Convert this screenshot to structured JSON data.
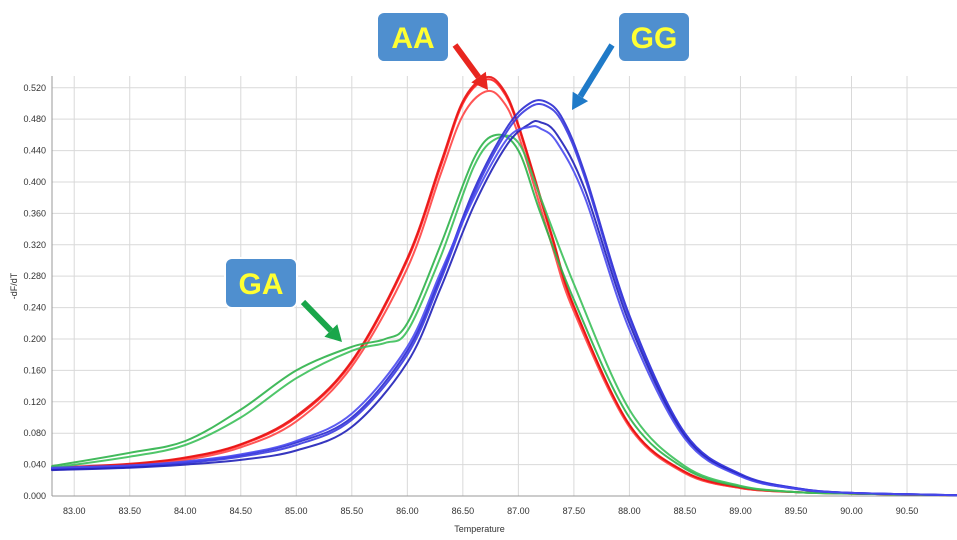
{
  "chart_data": {
    "type": "line",
    "title": "",
    "xlabel": "Temperature",
    "ylabel": "-dF/dT",
    "xlim": [
      82.8,
      90.95
    ],
    "ylim": [
      0,
      0.535
    ],
    "x_ticks": [
      "83.00",
      "83.50",
      "84.00",
      "84.50",
      "85.00",
      "85.50",
      "86.00",
      "86.50",
      "87.00",
      "87.50",
      "88.00",
      "88.50",
      "89.00",
      "89.50",
      "90.00",
      "90.50"
    ],
    "y_ticks": [
      "0.000",
      "0.040",
      "0.080",
      "0.120",
      "0.160",
      "0.200",
      "0.240",
      "0.280",
      "0.320",
      "0.360",
      "0.400",
      "0.440",
      "0.480",
      "0.520"
    ],
    "grid": true,
    "callouts": [
      {
        "label": "AA",
        "color": "#e8261f"
      },
      {
        "label": "GG",
        "color": "#1f7ac8"
      },
      {
        "label": "GA",
        "color": "#1aa64a"
      }
    ],
    "callout_box_color": "#4f8fcf",
    "series": [
      {
        "group": "AA",
        "color": "#ff2020",
        "x": [
          82.8,
          83.5,
          84.0,
          84.5,
          85.0,
          85.5,
          86.0,
          86.3,
          86.5,
          86.7,
          86.85,
          87.0,
          87.3,
          87.5,
          88.0,
          88.5,
          89.0,
          89.5,
          90.0,
          90.95
        ],
        "y": [
          0.035,
          0.04,
          0.048,
          0.065,
          0.1,
          0.17,
          0.3,
          0.42,
          0.5,
          0.53,
          0.518,
          0.47,
          0.33,
          0.24,
          0.09,
          0.03,
          0.01,
          0.005,
          0.003,
          0.001
        ]
      },
      {
        "group": "AA",
        "color": "#ff4444",
        "x": [
          82.8,
          83.5,
          84.0,
          84.5,
          85.0,
          85.5,
          86.0,
          86.3,
          86.5,
          86.7,
          86.85,
          87.0,
          87.3,
          87.5,
          88.0,
          88.5,
          89.0,
          89.5,
          90.0,
          90.95
        ],
        "y": [
          0.034,
          0.039,
          0.046,
          0.062,
          0.095,
          0.165,
          0.29,
          0.41,
          0.485,
          0.515,
          0.505,
          0.46,
          0.32,
          0.235,
          0.088,
          0.029,
          0.01,
          0.005,
          0.003,
          0.001
        ]
      },
      {
        "group": "AA",
        "color": "#e81010",
        "x": [
          82.8,
          83.5,
          84.0,
          84.5,
          85.0,
          85.5,
          86.0,
          86.3,
          86.5,
          86.7,
          86.85,
          87.0,
          87.3,
          87.5,
          88.0,
          88.5,
          89.0,
          89.5,
          90.0,
          90.95
        ],
        "y": [
          0.036,
          0.041,
          0.049,
          0.066,
          0.102,
          0.172,
          0.303,
          0.424,
          0.503,
          0.533,
          0.521,
          0.473,
          0.333,
          0.242,
          0.091,
          0.031,
          0.011,
          0.005,
          0.003,
          0.001
        ]
      },
      {
        "group": "GA",
        "color": "#2db34a",
        "x": [
          82.8,
          83.5,
          84.0,
          84.5,
          85.0,
          85.5,
          85.8,
          86.0,
          86.3,
          86.6,
          86.8,
          87.0,
          87.2,
          87.5,
          88.0,
          88.5,
          89.0,
          89.5,
          90.0,
          90.95
        ],
        "y": [
          0.038,
          0.055,
          0.07,
          0.11,
          0.16,
          0.19,
          0.2,
          0.22,
          0.32,
          0.43,
          0.46,
          0.44,
          0.36,
          0.25,
          0.1,
          0.035,
          0.012,
          0.005,
          0.003,
          0.001
        ]
      },
      {
        "group": "GA",
        "color": "#3cc05a",
        "x": [
          82.8,
          83.5,
          84.0,
          84.5,
          85.0,
          85.5,
          85.8,
          86.0,
          86.3,
          86.6,
          86.8,
          87.0,
          87.2,
          87.5,
          88.0,
          88.5,
          89.0,
          89.5,
          90.0,
          90.95
        ],
        "y": [
          0.036,
          0.05,
          0.065,
          0.1,
          0.15,
          0.185,
          0.195,
          0.21,
          0.305,
          0.42,
          0.455,
          0.45,
          0.38,
          0.27,
          0.11,
          0.038,
          0.013,
          0.005,
          0.003,
          0.001
        ]
      },
      {
        "group": "GG",
        "color": "#2a2ad0",
        "x": [
          82.8,
          83.5,
          84.0,
          84.5,
          85.0,
          85.5,
          86.0,
          86.3,
          86.6,
          86.9,
          87.1,
          87.25,
          87.4,
          87.6,
          88.0,
          88.5,
          89.0,
          89.5,
          90.0,
          90.95
        ],
        "y": [
          0.035,
          0.038,
          0.043,
          0.052,
          0.068,
          0.1,
          0.185,
          0.28,
          0.39,
          0.47,
          0.5,
          0.502,
          0.48,
          0.41,
          0.23,
          0.08,
          0.028,
          0.01,
          0.004,
          0.001
        ]
      },
      {
        "group": "GG",
        "color": "#3a3ae0",
        "x": [
          82.8,
          83.5,
          84.0,
          84.5,
          85.0,
          85.5,
          86.0,
          86.3,
          86.6,
          86.9,
          87.1,
          87.25,
          87.4,
          87.6,
          88.0,
          88.5,
          89.0,
          89.5,
          90.0,
          90.95
        ],
        "y": [
          0.034,
          0.037,
          0.042,
          0.05,
          0.065,
          0.097,
          0.18,
          0.275,
          0.385,
          0.465,
          0.495,
          0.497,
          0.475,
          0.405,
          0.227,
          0.079,
          0.027,
          0.01,
          0.004,
          0.001
        ]
      },
      {
        "group": "GG",
        "color": "#2020b8",
        "x": [
          82.8,
          83.5,
          84.0,
          84.5,
          85.0,
          85.5,
          86.0,
          86.3,
          86.6,
          86.9,
          87.1,
          87.2,
          87.35,
          87.6,
          88.0,
          88.5,
          89.0,
          89.5,
          90.0,
          90.95
        ],
        "y": [
          0.033,
          0.036,
          0.04,
          0.046,
          0.058,
          0.088,
          0.17,
          0.265,
          0.37,
          0.448,
          0.474,
          0.476,
          0.46,
          0.39,
          0.22,
          0.076,
          0.026,
          0.009,
          0.004,
          0.001
        ]
      },
      {
        "group": "GG",
        "color": "#4a4af0",
        "x": [
          82.8,
          83.5,
          84.0,
          84.5,
          85.0,
          85.5,
          86.0,
          86.3,
          86.6,
          86.9,
          87.1,
          87.2,
          87.35,
          87.6,
          88.0,
          88.5,
          89.0,
          89.5,
          90.0,
          90.95
        ],
        "y": [
          0.036,
          0.039,
          0.044,
          0.053,
          0.07,
          0.105,
          0.19,
          0.285,
          0.38,
          0.455,
          0.47,
          0.468,
          0.45,
          0.38,
          0.212,
          0.073,
          0.025,
          0.009,
          0.004,
          0.001
        ]
      }
    ]
  }
}
